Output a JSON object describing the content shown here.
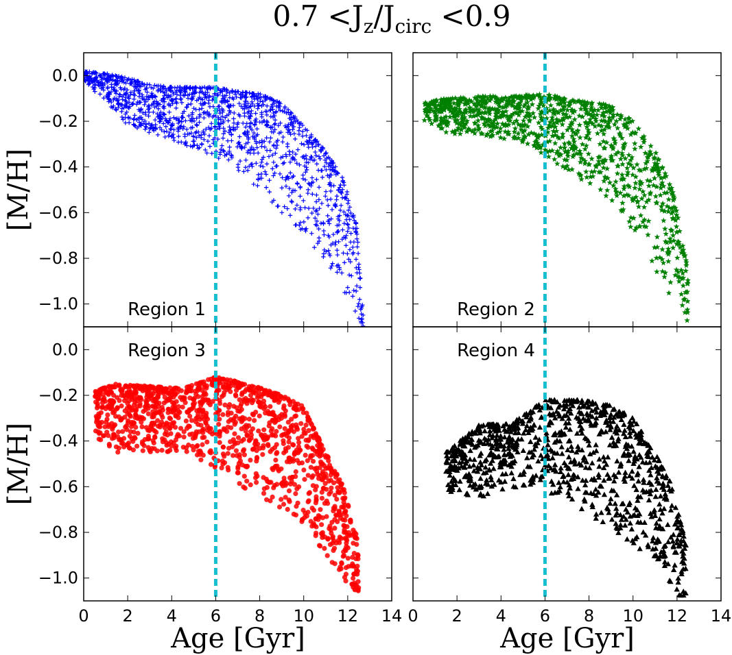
{
  "chart_data": {
    "type": "scatter",
    "title": {
      "parts": [
        {
          "text": "0.7 <J",
          "sub": false
        },
        {
          "text": "z",
          "sub": true
        },
        {
          "text": "/J",
          "sub": false
        },
        {
          "text": "circ",
          "sub": true
        },
        {
          "text": " <0.9",
          "sub": false
        }
      ]
    },
    "xlabel": "Age [Gyr]",
    "ylabel": "[M/H]",
    "xlim": [
      0,
      14
    ],
    "ylim": [
      -1.1,
      0.1
    ],
    "xticks": [
      0,
      2,
      4,
      6,
      8,
      10,
      12,
      14
    ],
    "yticks": [
      0.0,
      -0.2,
      -0.4,
      -0.6,
      -0.8,
      -1.0
    ],
    "xtick_labels": [
      "0",
      "2",
      "4",
      "6",
      "8",
      "10",
      "12",
      "14"
    ],
    "ytick_labels": [
      "0.0",
      "−0.2",
      "−0.4",
      "−0.6",
      "−0.8",
      "−1.0"
    ],
    "reference_line": {
      "x": 6,
      "style": "dashed",
      "color": "#17becf"
    },
    "panels": [
      {
        "label": "Region 1",
        "marker": "plus",
        "color": "#0000ff",
        "label_corner": "bottom-left",
        "envelope": [
          {
            "age": 0.0,
            "top": 0.02,
            "bottom": -0.02
          },
          {
            "age": 1.0,
            "top": 0.01,
            "bottom": -0.12
          },
          {
            "age": 2.0,
            "top": -0.01,
            "bottom": -0.22
          },
          {
            "age": 3.0,
            "top": -0.04,
            "bottom": -0.25
          },
          {
            "age": 4.0,
            "top": -0.05,
            "bottom": -0.28
          },
          {
            "age": 5.0,
            "top": -0.05,
            "bottom": -0.32
          },
          {
            "age": 6.0,
            "top": -0.05,
            "bottom": -0.36
          },
          {
            "age": 7.0,
            "top": -0.07,
            "bottom": -0.42
          },
          {
            "age": 8.0,
            "top": -0.08,
            "bottom": -0.5
          },
          {
            "age": 9.0,
            "top": -0.12,
            "bottom": -0.6
          },
          {
            "age": 10.0,
            "top": -0.22,
            "bottom": -0.7
          },
          {
            "age": 11.0,
            "top": -0.33,
            "bottom": -0.82
          },
          {
            "age": 11.8,
            "top": -0.45,
            "bottom": -0.95
          },
          {
            "age": 12.4,
            "top": -0.65,
            "bottom": -1.05
          },
          {
            "age": 12.7,
            "top": -1.05,
            "bottom": -1.1
          }
        ],
        "n_points": 1500
      },
      {
        "label": "Region 2",
        "marker": "star",
        "color": "#008000",
        "label_corner": "bottom-left",
        "envelope": [
          {
            "age": 0.5,
            "top": -0.12,
            "bottom": -0.2
          },
          {
            "age": 1.5,
            "top": -0.1,
            "bottom": -0.25
          },
          {
            "age": 3.0,
            "top": -0.09,
            "bottom": -0.27
          },
          {
            "age": 4.5,
            "top": -0.09,
            "bottom": -0.28
          },
          {
            "age": 6.0,
            "top": -0.08,
            "bottom": -0.35
          },
          {
            "age": 7.5,
            "top": -0.11,
            "bottom": -0.45
          },
          {
            "age": 9.0,
            "top": -0.13,
            "bottom": -0.55
          },
          {
            "age": 10.0,
            "top": -0.2,
            "bottom": -0.68
          },
          {
            "age": 11.0,
            "top": -0.33,
            "bottom": -0.85
          },
          {
            "age": 11.8,
            "top": -0.5,
            "bottom": -0.98
          },
          {
            "age": 12.5,
            "top": -0.85,
            "bottom": -1.08
          }
        ],
        "n_points": 1100
      },
      {
        "label": "Region 3",
        "marker": "circle",
        "color": "#ff0000",
        "label_corner": "top-left",
        "envelope": [
          {
            "age": 0.5,
            "top": -0.18,
            "bottom": -0.38
          },
          {
            "age": 1.5,
            "top": -0.15,
            "bottom": -0.45
          },
          {
            "age": 3.0,
            "top": -0.16,
            "bottom": -0.45
          },
          {
            "age": 4.5,
            "top": -0.17,
            "bottom": -0.45
          },
          {
            "age": 6.0,
            "top": -0.12,
            "bottom": -0.52
          },
          {
            "age": 7.5,
            "top": -0.15,
            "bottom": -0.62
          },
          {
            "age": 9.0,
            "top": -0.2,
            "bottom": -0.7
          },
          {
            "age": 10.0,
            "top": -0.25,
            "bottom": -0.78
          },
          {
            "age": 11.0,
            "top": -0.45,
            "bottom": -0.9
          },
          {
            "age": 11.8,
            "top": -0.6,
            "bottom": -1.0
          },
          {
            "age": 12.5,
            "top": -0.85,
            "bottom": -1.1
          }
        ],
        "n_points": 1400
      },
      {
        "label": "Region 4",
        "marker": "triangle",
        "color": "#000000",
        "label_corner": "top-left",
        "envelope": [
          {
            "age": 1.5,
            "top": -0.45,
            "bottom": -0.62
          },
          {
            "age": 3.0,
            "top": -0.33,
            "bottom": -0.65
          },
          {
            "age": 4.5,
            "top": -0.32,
            "bottom": -0.6
          },
          {
            "age": 6.0,
            "top": -0.22,
            "bottom": -0.62
          },
          {
            "age": 7.5,
            "top": -0.22,
            "bottom": -0.72
          },
          {
            "age": 9.0,
            "top": -0.24,
            "bottom": -0.78
          },
          {
            "age": 10.0,
            "top": -0.3,
            "bottom": -0.85
          },
          {
            "age": 11.0,
            "top": -0.45,
            "bottom": -0.95
          },
          {
            "age": 11.8,
            "top": -0.6,
            "bottom": -1.05
          },
          {
            "age": 12.4,
            "top": -0.85,
            "bottom": -1.1
          }
        ],
        "n_points": 1000
      }
    ]
  }
}
